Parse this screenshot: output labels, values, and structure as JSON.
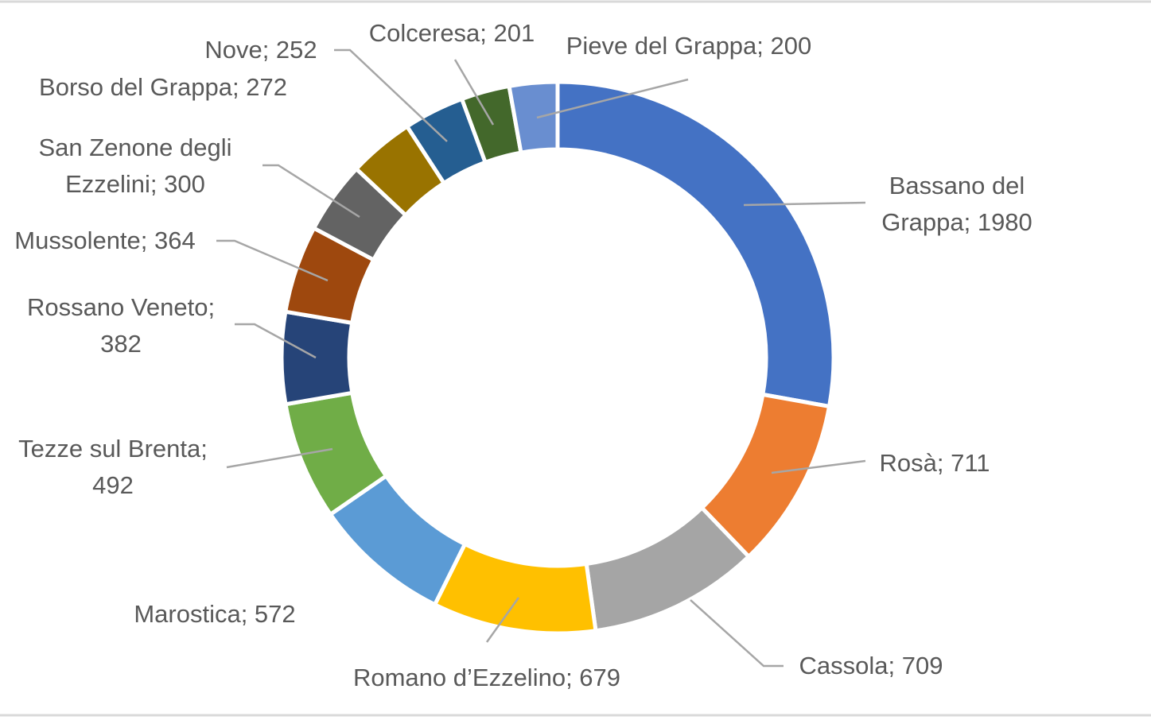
{
  "chart_data": {
    "type": "donut",
    "value_labels": [
      "Bassano del\nGrappa; 1980",
      "Rosà; 711",
      "Cassola; 709",
      "Romano d’Ezzelino; 679",
      "Marostica; 572",
      "Tezze sul Brenta;\n492",
      "Rossano Veneto;\n382",
      "Mussolente; 364",
      "San Zenone degli\nEzzelini; 300",
      "Borso del Grappa; 272",
      "Nove; 252",
      "Colceresa; 201",
      "Pieve del Grappa; 200"
    ],
    "values": [
      1980,
      711,
      709,
      679,
      572,
      492,
      382,
      364,
      300,
      272,
      252,
      201,
      200
    ],
    "colors": [
      "#4472c4",
      "#ed7d31",
      "#a5a5a5",
      "#ffc000",
      "#5b9bd5",
      "#70ad47",
      "#264478",
      "#9e480e",
      "#636363",
      "#997300",
      "#255e91",
      "#43682b",
      "#698ed0"
    ]
  }
}
